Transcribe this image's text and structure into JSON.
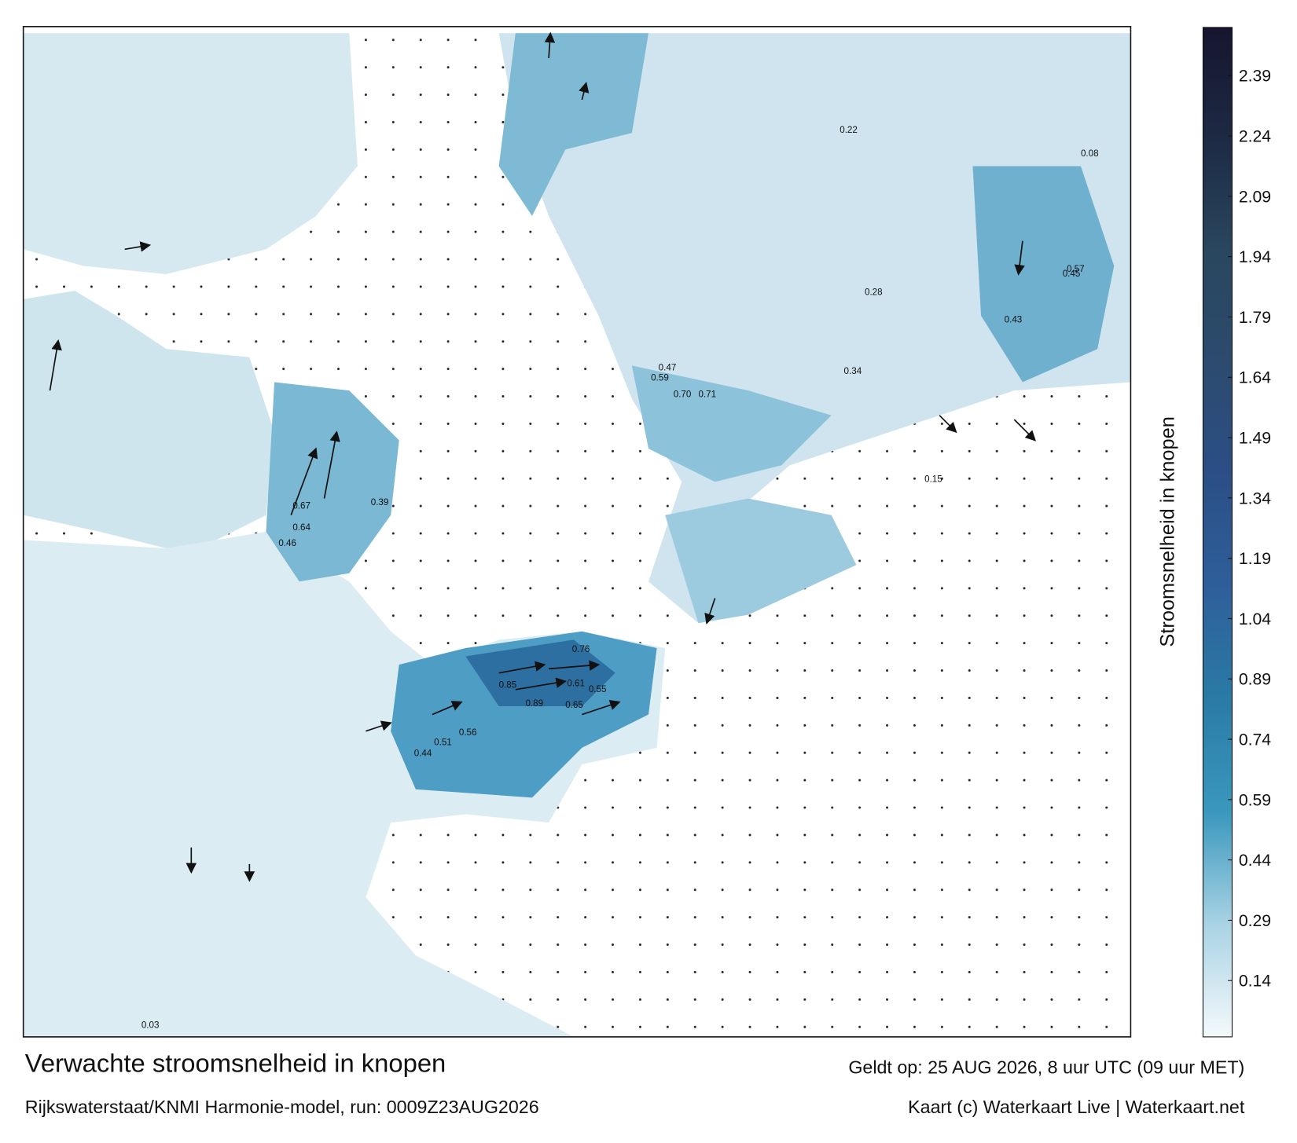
{
  "map": {
    "title": "Verwachte stroomsnelheid in knopen",
    "subtitle": "Rijkswaterstaat/KNMI Harmonie-model, run: 0009Z23AUG2026",
    "valid": "Geldt op: 25 AUG 2026, 8 uur UTC (09 uur MET)",
    "credit": "Kaart (c) Waterkaart Live | Waterkaart.net",
    "current_labels": [
      "0.67",
      "0.64",
      "0.46",
      "0.89",
      "0.85",
      "0.76",
      "0.61",
      "0.65",
      "0.55",
      "0.44",
      "0.51",
      "0.56",
      "0.70",
      "0.71",
      "0.59",
      "0.47",
      "0.43",
      "0.57",
      "0.45",
      "0.39",
      "0.34",
      "0.28",
      "0.22",
      "0.15",
      "0.08",
      "0.03"
    ]
  },
  "colorbar": {
    "label": "Stroomsnelheid in knopen",
    "lim": [
      0,
      2.51
    ],
    "ticks": [
      0.14,
      0.29,
      0.44,
      0.59,
      0.74,
      0.89,
      1.04,
      1.19,
      1.34,
      1.49,
      1.64,
      1.79,
      1.94,
      2.09,
      2.24,
      2.39
    ],
    "colors": [
      "#f4f9fb",
      "#a9d3e4",
      "#3a98bd",
      "#2a7ba6",
      "#2e5f9a",
      "#2b4f86",
      "#2c4b6e",
      "#29475e",
      "#1d2a44",
      "#16152e"
    ]
  }
}
